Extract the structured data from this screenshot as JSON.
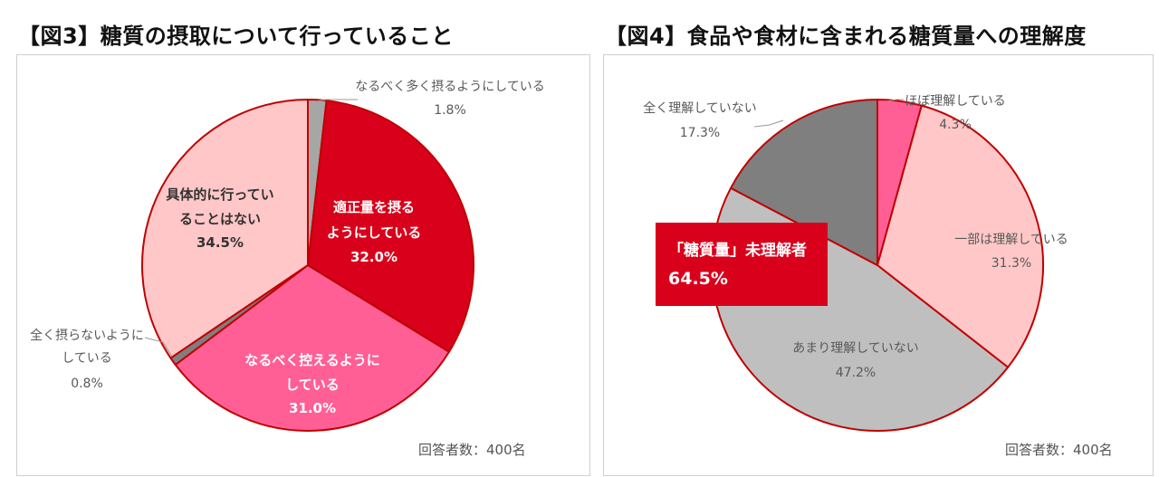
{
  "figure3": {
    "title": "【図3】糖質の摂取について行っていること",
    "respondents": "回答者数：400名",
    "chart_data": {
      "type": "pie",
      "unit": "%",
      "slices": [
        {
          "label": "なるべく多く摂るようにしている",
          "value": 1.8,
          "value_label": "1.8%",
          "color": "#a6a6a6"
        },
        {
          "label": "適正量を摂るようにしている",
          "value": 32.0,
          "value_label": "32.0%",
          "color": "#d9001b"
        },
        {
          "label": "なるべく控えるようにしている",
          "value": 31.0,
          "value_label": "31.0%",
          "color": "#ff5f95"
        },
        {
          "label": "全く摂らないようにしている",
          "value": 0.8,
          "value_label": "0.8%",
          "color": "#7f7f7f"
        },
        {
          "label": "具体的に行っていることはない",
          "value": 34.5,
          "value_label": "34.5%",
          "color": "#ffc7c7"
        }
      ]
    }
  },
  "figure4": {
    "title": "【図4】食品や食材に含まれる糖質量への理解度",
    "respondents": "回答者数：400名",
    "callout": {
      "line1": "「糖質量」未理解者",
      "line2": "64.5%"
    },
    "chart_data": {
      "type": "pie",
      "unit": "%",
      "slices": [
        {
          "label": "ほぼ理解している",
          "value": 4.3,
          "value_label": "4.3%",
          "color": "#ff5f95"
        },
        {
          "label": "一部は理解している",
          "value": 31.3,
          "value_label": "31.3%",
          "color": "#ffc7c7"
        },
        {
          "label": "あまり理解していない",
          "value": 47.2,
          "value_label": "47.2%",
          "color": "#bfbfbf"
        },
        {
          "label": "全く理解していない",
          "value": 17.3,
          "value_label": "17.3%",
          "color": "#7f7f7f"
        }
      ]
    }
  }
}
